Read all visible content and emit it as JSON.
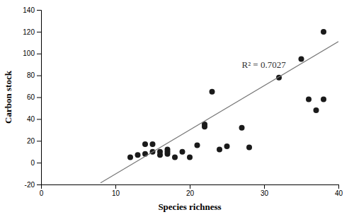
{
  "chart_data": {
    "type": "scatter",
    "xlabel": "Species richness",
    "ylabel": "Carbon stock",
    "series": [
      {
        "type": "scatter",
        "color": "#1a1a1a",
        "x": [
          12,
          13,
          14,
          14,
          15,
          15,
          16,
          16,
          17,
          17,
          17,
          18,
          19,
          20,
          21,
          22,
          22,
          23,
          24,
          25,
          27,
          28,
          32,
          35,
          36,
          37,
          38,
          38
        ],
        "values": [
          5,
          7,
          8,
          17,
          10,
          17,
          7,
          10,
          8,
          12,
          10,
          5,
          10,
          5,
          16,
          33,
          35,
          65,
          12,
          15,
          32,
          14,
          78,
          95,
          58,
          48,
          120,
          58
        ]
      },
      {
        "type": "line",
        "color": "#777777",
        "x": [
          8,
          40
        ],
        "values": [
          -18.6,
          111
        ]
      }
    ],
    "annotations": [
      {
        "text": "R² = 0.7027",
        "x": 27,
        "y": 87
      }
    ],
    "xlim": [
      0,
      40
    ],
    "ylim": [
      -20,
      140
    ],
    "xticks": [
      0,
      10,
      20,
      30,
      40
    ],
    "yticks": [
      -20,
      0,
      20,
      40,
      60,
      80,
      100,
      120,
      140
    ],
    "grid": false
  }
}
